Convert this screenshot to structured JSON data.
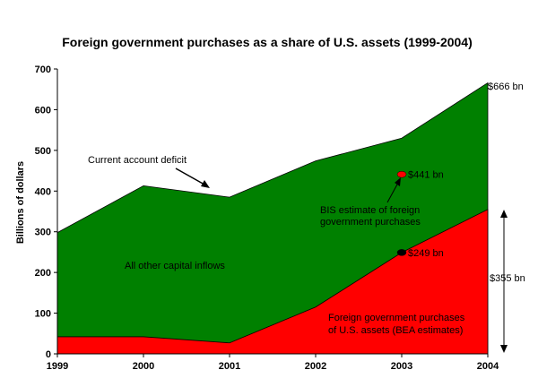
{
  "chart_data": {
    "type": "area",
    "title": "Foreign government purchases as a share of U.S. assets (1999-2004)",
    "xlabel": "",
    "ylabel": "Billions of dollars",
    "x": [
      1999,
      2000,
      2001,
      2002,
      2003,
      2004
    ],
    "x_tick_labels": [
      "1999",
      "2000",
      "2001",
      "2002",
      "2003",
      "2004"
    ],
    "y_ticks": [
      0,
      100,
      200,
      300,
      400,
      500,
      600,
      700
    ],
    "ylim": [
      0,
      700
    ],
    "stacking": "overlay",
    "grid": false,
    "series": [
      {
        "name": "Current account deficit",
        "color": "#008000",
        "values": [
          298,
          413,
          385,
          474,
          530,
          666
        ]
      },
      {
        "name": "Foreign government purchases of U.S. assets (BEA estimates)",
        "color": "#ff0000",
        "values": [
          42,
          42,
          27,
          115,
          249,
          355
        ]
      }
    ],
    "markers": [
      {
        "x": 2003,
        "y": 441,
        "color": "#ff0000",
        "label": "$441 bn"
      },
      {
        "x": 2003,
        "y": 249,
        "color": "#000000",
        "label": "$249 bn"
      }
    ],
    "annotations": {
      "current_account": "Current account deficit",
      "other_inflows": "All other capital inflows",
      "bis_line1": "BIS estimate of foreign",
      "bis_line2": "government purchases",
      "bea_line1": "Foreign government purchases",
      "bea_line2": "of U.S. assets (BEA estimates)",
      "end_total": "$666 bn",
      "bracket_label": "$355 bn"
    }
  }
}
